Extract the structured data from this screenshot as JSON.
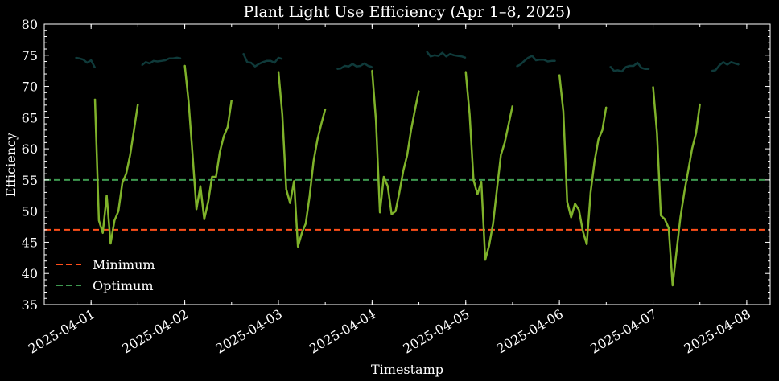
{
  "chart_data": {
    "type": "line",
    "title": "Plant Light Use Efficiency (Apr 1–8, 2025)",
    "xlabel": "Timestamp",
    "ylabel": "Efficiency",
    "x_type": "datetime",
    "xlim": [
      "2025-03-31T12:00",
      "2025-04-08T06:00"
    ],
    "ylim": [
      35,
      80
    ],
    "yticks": [
      35,
      40,
      45,
      50,
      55,
      60,
      65,
      70,
      75,
      80
    ],
    "xticks": [
      "2025-04-01",
      "2025-04-02",
      "2025-04-03",
      "2025-04-04",
      "2025-04-05",
      "2025-04-06",
      "2025-04-07",
      "2025-04-08"
    ],
    "grid": false,
    "legend_position": "lower-left",
    "background": "#000000",
    "reference_lines": [
      {
        "name": "Minimum",
        "y": 47,
        "color": "#ff4f1a",
        "style": "dashed"
      },
      {
        "name": "Optimum",
        "y": 55,
        "color": "#3e9950",
        "style": "dashed"
      }
    ],
    "series": [
      {
        "color": "#7fb22a",
        "style": "solid",
        "segments": [
          [
            [
              "2025-04-01T01:00",
              68.0
            ],
            [
              "2025-04-01T02:00",
              48.5
            ],
            [
              "2025-04-01T03:00",
              46.5
            ],
            [
              "2025-04-01T04:00",
              52.5
            ],
            [
              "2025-04-01T05:00",
              44.8
            ],
            [
              "2025-04-01T06:00",
              48.5
            ],
            [
              "2025-04-01T07:00",
              50.0
            ],
            [
              "2025-04-01T08:00",
              54.5
            ],
            [
              "2025-04-01T09:00",
              56.0
            ],
            [
              "2025-04-01T10:00",
              59.0
            ],
            [
              "2025-04-01T11:00",
              63.0
            ],
            [
              "2025-04-01T12:00",
              67.2
            ]
          ],
          [
            [
              "2025-04-02T00:00",
              73.4
            ],
            [
              "2025-04-02T01:00",
              67.5
            ],
            [
              "2025-04-02T02:00",
              59.0
            ],
            [
              "2025-04-02T03:00",
              50.3
            ],
            [
              "2025-04-02T04:00",
              54.0
            ],
            [
              "2025-04-02T05:00",
              48.7
            ],
            [
              "2025-04-02T06:00",
              51.5
            ],
            [
              "2025-04-02T07:00",
              55.5
            ],
            [
              "2025-04-02T08:00",
              55.5
            ],
            [
              "2025-04-02T09:00",
              59.5
            ],
            [
              "2025-04-02T10:00",
              62.0
            ],
            [
              "2025-04-02T11:00",
              63.5
            ],
            [
              "2025-04-02T12:00",
              67.8
            ]
          ],
          [
            [
              "2025-04-03T00:00",
              72.4
            ],
            [
              "2025-04-03T01:00",
              65.5
            ],
            [
              "2025-04-03T02:00",
              53.5
            ],
            [
              "2025-04-03T03:00",
              51.3
            ],
            [
              "2025-04-03T04:00",
              54.8
            ],
            [
              "2025-04-03T05:00",
              44.3
            ],
            [
              "2025-04-03T06:00",
              46.5
            ],
            [
              "2025-04-03T07:00",
              48.0
            ],
            [
              "2025-04-03T08:00",
              52.5
            ],
            [
              "2025-04-03T09:00",
              58.0
            ],
            [
              "2025-04-03T10:00",
              61.5
            ],
            [
              "2025-04-03T11:00",
              64.0
            ],
            [
              "2025-04-03T12:00",
              66.4
            ]
          ],
          [
            [
              "2025-04-04T00:00",
              72.6
            ],
            [
              "2025-04-04T01:00",
              64.5
            ],
            [
              "2025-04-04T02:00",
              49.8
            ],
            [
              "2025-04-04T03:00",
              55.5
            ],
            [
              "2025-04-04T04:00",
              54.0
            ],
            [
              "2025-04-04T05:00",
              49.5
            ],
            [
              "2025-04-04T06:00",
              50.0
            ],
            [
              "2025-04-04T07:00",
              53.0
            ],
            [
              "2025-04-04T08:00",
              56.5
            ],
            [
              "2025-04-04T09:00",
              59.0
            ],
            [
              "2025-04-04T10:00",
              63.0
            ],
            [
              "2025-04-04T11:00",
              66.3
            ],
            [
              "2025-04-04T12:00",
              69.3
            ]
          ],
          [
            [
              "2025-04-05T00:00",
              72.4
            ],
            [
              "2025-04-05T01:00",
              65.5
            ],
            [
              "2025-04-05T02:00",
              55.0
            ],
            [
              "2025-04-05T03:00",
              52.7
            ],
            [
              "2025-04-05T04:00",
              54.7
            ],
            [
              "2025-04-05T05:00",
              42.2
            ],
            [
              "2025-04-05T06:00",
              44.5
            ],
            [
              "2025-04-05T07:00",
              48.0
            ],
            [
              "2025-04-05T08:00",
              53.5
            ],
            [
              "2025-04-05T09:00",
              59.0
            ],
            [
              "2025-04-05T10:00",
              61.0
            ],
            [
              "2025-04-05T11:00",
              64.0
            ],
            [
              "2025-04-05T12:00",
              66.9
            ]
          ],
          [
            [
              "2025-04-06T00:00",
              71.9
            ],
            [
              "2025-04-06T01:00",
              66.0
            ],
            [
              "2025-04-06T02:00",
              51.5
            ],
            [
              "2025-04-06T03:00",
              49.0
            ],
            [
              "2025-04-06T04:00",
              51.2
            ],
            [
              "2025-04-06T05:00",
              50.2
            ],
            [
              "2025-04-06T06:00",
              46.8
            ],
            [
              "2025-04-06T07:00",
              44.7
            ],
            [
              "2025-04-06T08:00",
              53.0
            ],
            [
              "2025-04-06T09:00",
              58.0
            ],
            [
              "2025-04-06T10:00",
              61.5
            ],
            [
              "2025-04-06T11:00",
              63.0
            ],
            [
              "2025-04-06T12:00",
              66.7
            ]
          ],
          [
            [
              "2025-04-07T00:00",
              70.0
            ],
            [
              "2025-04-07T01:00",
              62.5
            ],
            [
              "2025-04-07T02:00",
              49.3
            ],
            [
              "2025-04-07T03:00",
              48.7
            ],
            [
              "2025-04-07T04:00",
              47.3
            ],
            [
              "2025-04-07T05:00",
              38.1
            ],
            [
              "2025-04-07T06:00",
              43.5
            ],
            [
              "2025-04-07T07:00",
              49.0
            ],
            [
              "2025-04-07T08:00",
              53.0
            ],
            [
              "2025-04-07T09:00",
              56.5
            ],
            [
              "2025-04-07T10:00",
              60.0
            ],
            [
              "2025-04-07T11:00",
              62.5
            ],
            [
              "2025-04-07T12:00",
              67.2
            ]
          ]
        ]
      },
      {
        "color": "#0f3a3a",
        "style": "solid",
        "segments": [
          [
            [
              "2025-03-31T20:00",
              74.6
            ],
            [
              "2025-03-31T21:00",
              74.5
            ],
            [
              "2025-03-31T22:00",
              74.3
            ],
            [
              "2025-03-31T23:00",
              73.8
            ],
            [
              "2025-04-01T00:00",
              74.2
            ],
            [
              "2025-04-01T01:00",
              73.0
            ]
          ],
          [
            [
              "2025-04-01T13:00",
              73.4
            ],
            [
              "2025-04-01T14:00",
              73.9
            ],
            [
              "2025-04-01T15:00",
              73.7
            ],
            [
              "2025-04-01T16:00",
              74.1
            ],
            [
              "2025-04-01T17:00",
              74.0
            ],
            [
              "2025-04-01T18:00",
              74.1
            ],
            [
              "2025-04-01T19:00",
              74.2
            ],
            [
              "2025-04-01T20:00",
              74.5
            ],
            [
              "2025-04-01T21:00",
              74.5
            ],
            [
              "2025-04-01T22:00",
              74.6
            ],
            [
              "2025-04-01T23:00",
              74.5
            ]
          ],
          [
            [
              "2025-04-02T15:00",
              75.3
            ],
            [
              "2025-04-02T16:00",
              73.9
            ],
            [
              "2025-04-02T17:00",
              73.8
            ],
            [
              "2025-04-02T18:00",
              73.2
            ],
            [
              "2025-04-02T19:00",
              73.6
            ],
            [
              "2025-04-02T20:00",
              73.9
            ],
            [
              "2025-04-02T21:00",
              74.1
            ],
            [
              "2025-04-02T22:00",
              74.1
            ],
            [
              "2025-04-02T23:00",
              73.8
            ],
            [
              "2025-04-03T00:00",
              74.6
            ],
            [
              "2025-04-03T01:00",
              74.4
            ]
          ],
          [
            [
              "2025-04-03T15:00",
              72.8
            ],
            [
              "2025-04-03T16:00",
              72.9
            ],
            [
              "2025-04-03T17:00",
              73.3
            ],
            [
              "2025-04-03T18:00",
              73.2
            ],
            [
              "2025-04-03T19:00",
              73.6
            ],
            [
              "2025-04-03T20:00",
              73.2
            ],
            [
              "2025-04-03T21:00",
              73.3
            ],
            [
              "2025-04-03T22:00",
              73.7
            ],
            [
              "2025-04-03T23:00",
              73.3
            ],
            [
              "2025-04-04T00:00",
              73.1
            ]
          ],
          [
            [
              "2025-04-04T14:00",
              75.6
            ],
            [
              "2025-04-04T15:00",
              74.8
            ],
            [
              "2025-04-04T16:00",
              75.0
            ],
            [
              "2025-04-04T17:00",
              74.9
            ],
            [
              "2025-04-04T18:00",
              75.4
            ],
            [
              "2025-04-04T19:00",
              74.8
            ],
            [
              "2025-04-04T20:00",
              75.2
            ],
            [
              "2025-04-04T21:00",
              75.0
            ],
            [
              "2025-04-04T22:00",
              74.9
            ],
            [
              "2025-04-04T23:00",
              74.8
            ],
            [
              "2025-04-05T00:00",
              74.6
            ]
          ],
          [
            [
              "2025-04-05T13:00",
              73.2
            ],
            [
              "2025-04-05T14:00",
              73.5
            ],
            [
              "2025-04-05T15:00",
              74.1
            ],
            [
              "2025-04-05T16:00",
              74.6
            ],
            [
              "2025-04-05T17:00",
              74.9
            ],
            [
              "2025-04-05T18:00",
              74.2
            ],
            [
              "2025-04-05T19:00",
              74.3
            ],
            [
              "2025-04-05T20:00",
              74.3
            ],
            [
              "2025-04-05T21:00",
              74.0
            ],
            [
              "2025-04-05T22:00",
              74.1
            ],
            [
              "2025-04-05T23:00",
              74.1
            ]
          ],
          [
            [
              "2025-04-06T13:00",
              73.2
            ],
            [
              "2025-04-06T14:00",
              72.5
            ],
            [
              "2025-04-06T15:00",
              72.6
            ],
            [
              "2025-04-06T16:00",
              72.4
            ],
            [
              "2025-04-06T17:00",
              73.1
            ],
            [
              "2025-04-06T18:00",
              73.3
            ],
            [
              "2025-04-06T19:00",
              73.3
            ],
            [
              "2025-04-06T20:00",
              73.8
            ],
            [
              "2025-04-06T21:00",
              73.0
            ],
            [
              "2025-04-06T22:00",
              72.8
            ],
            [
              "2025-04-06T23:00",
              72.8
            ]
          ],
          [
            [
              "2025-04-07T15:00",
              72.5
            ],
            [
              "2025-04-07T16:00",
              72.6
            ],
            [
              "2025-04-07T17:00",
              73.4
            ],
            [
              "2025-04-07T18:00",
              73.9
            ],
            [
              "2025-04-07T19:00",
              73.5
            ],
            [
              "2025-04-07T20:00",
              73.9
            ],
            [
              "2025-04-07T21:00",
              73.7
            ],
            [
              "2025-04-07T22:00",
              73.5
            ]
          ]
        ]
      }
    ],
    "legend": [
      {
        "label": "Minimum",
        "color": "#ff4f1a",
        "style": "dashed"
      },
      {
        "label": "Optimum",
        "color": "#3e9950",
        "style": "dashed"
      }
    ]
  }
}
